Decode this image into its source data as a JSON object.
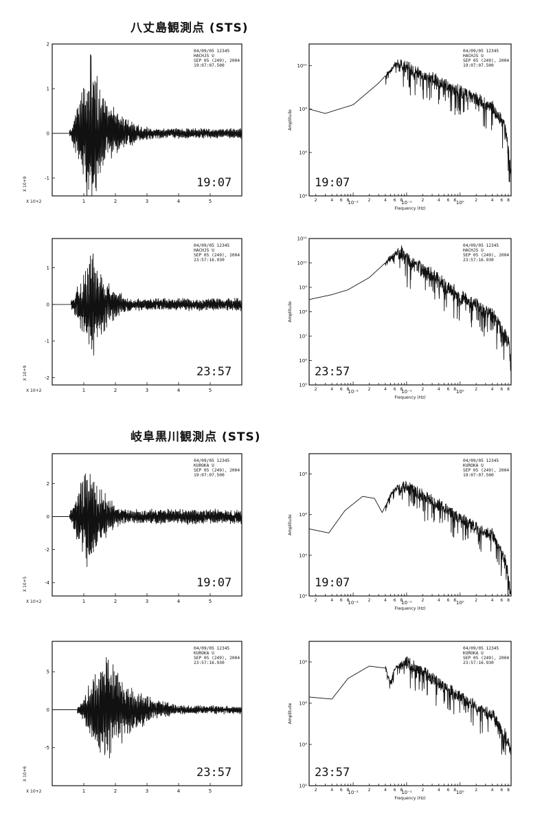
{
  "sections": [
    {
      "title": "八丈島観測点 (STS)"
    },
    {
      "title": "岐阜黒川観測点 (STS)"
    }
  ],
  "chart_data": [
    {
      "type": "line",
      "kind": "waveform",
      "station": "HACHJS",
      "info": [
        "04/09/05 12345",
        "HACHJS  U",
        "SEP 05 (249), 2004",
        "19:07:07.500"
      ],
      "time_label": "19:07",
      "xlim": [
        0,
        6
      ],
      "xticks": [
        "1",
        "2",
        "3",
        "4",
        "5"
      ],
      "x_scale_label": "X 10+2",
      "ylim": [
        -1.4,
        2.0
      ],
      "yticks": [
        {
          "v": 2,
          "t": "2"
        },
        {
          "v": 1,
          "t": "1"
        },
        {
          "v": 0,
          "t": "0"
        },
        {
          "v": -1,
          "t": "-1"
        }
      ],
      "y_scale_label": "X 10+9",
      "onset": 0.55,
      "peak_at": 1.2,
      "envelope_peak": 1.9,
      "decay": 1.4,
      "tail": 0.12,
      "seed": 11
    },
    {
      "type": "line",
      "kind": "spectrum",
      "info": [
        "04/09/05 12345",
        "HACHJS  U",
        "SEP 05 (249), 2004",
        "19:07:07.500"
      ],
      "time_label": "19:07",
      "xlabel": "Frequency (Hz)",
      "ylabel": "Amplitude",
      "xscale": "log",
      "yscale": "log",
      "xlim": [
        0.0015,
        9
      ],
      "ylim": [
        4,
        11
      ],
      "yticks": [
        {
          "v": 4,
          "t": "10⁴"
        },
        {
          "v": 6,
          "t": "10⁶"
        },
        {
          "v": 8,
          "t": "10⁸"
        },
        {
          "v": 10,
          "t": "10¹⁰"
        }
      ],
      "xtick_labels": [
        {
          "v": 0.01,
          "t": "10⁻²"
        },
        {
          "v": 0.1,
          "t": "10⁻¹"
        },
        {
          "v": 1,
          "t": "10⁰"
        }
      ],
      "anchors": [
        [
          0.0015,
          8.0
        ],
        [
          0.003,
          7.8
        ],
        [
          0.01,
          8.2
        ],
        [
          0.03,
          9.2
        ],
        [
          0.07,
          10.2
        ],
        [
          0.1,
          10.1
        ],
        [
          0.3,
          9.6
        ],
        [
          1,
          9.0
        ],
        [
          4,
          8.3
        ],
        [
          7,
          7.4
        ],
        [
          9,
          5.2
        ]
      ],
      "seed": 21
    },
    {
      "type": "line",
      "kind": "waveform",
      "station": "HACHJS",
      "info": [
        "04/09/05 12345",
        "HACHJS  U",
        "SEP 05 (249), 2004",
        "23:57:16.930"
      ],
      "time_label": "23:57",
      "xlim": [
        0,
        6
      ],
      "xticks": [
        "1",
        "2",
        "3",
        "4",
        "5"
      ],
      "x_scale_label": "X 10+2",
      "ylim": [
        -2.2,
        1.8
      ],
      "yticks": [
        {
          "v": 1,
          "t": "1"
        },
        {
          "v": 0,
          "t": "0"
        },
        {
          "v": -1,
          "t": "-1"
        },
        {
          "v": -2,
          "t": "-2"
        }
      ],
      "y_scale_label": "X 10+9",
      "onset": 0.6,
      "peak_at": 1.25,
      "envelope_peak": 1.7,
      "decay": 1.8,
      "tail": 0.18,
      "seed": 33
    },
    {
      "type": "line",
      "kind": "spectrum",
      "info": [
        "04/09/05 12345",
        "HACHJS  U",
        "SEP 05 (249), 2004",
        "23:57:16.930"
      ],
      "time_label": "23:57",
      "xlabel": "Frequency (Hz)",
      "ylabel": "Amplitude",
      "xscale": "log",
      "yscale": "log",
      "xlim": [
        0.0015,
        9
      ],
      "ylim": [
        5,
        11
      ],
      "yticks": [
        {
          "v": 5,
          "t": "10⁵"
        },
        {
          "v": 6,
          "t": "10⁶"
        },
        {
          "v": 7,
          "t": "10⁷"
        },
        {
          "v": 8,
          "t": "10⁸"
        },
        {
          "v": 9,
          "t": "10⁹"
        },
        {
          "v": 10,
          "t": "10¹⁰"
        },
        {
          "v": 11,
          "t": "10¹¹"
        }
      ],
      "xtick_labels": [
        {
          "v": 0.01,
          "t": "10⁻²"
        },
        {
          "v": 0.1,
          "t": "10⁻¹"
        },
        {
          "v": 1,
          "t": "10⁰"
        }
      ],
      "anchors": [
        [
          0.0015,
          8.5
        ],
        [
          0.004,
          8.7
        ],
        [
          0.008,
          8.9
        ],
        [
          0.02,
          9.4
        ],
        [
          0.05,
          10.2
        ],
        [
          0.08,
          10.6
        ],
        [
          0.12,
          10.2
        ],
        [
          0.3,
          9.7
        ],
        [
          1,
          8.8
        ],
        [
          4,
          8.1
        ],
        [
          8,
          7.0
        ],
        [
          9,
          5.9
        ]
      ],
      "seed": 44
    },
    {
      "type": "line",
      "kind": "waveform",
      "station": "KUROKA",
      "info": [
        "04/09/05 12345",
        "KUROKA  U",
        "SEP 05 (249), 2004",
        "19:07:07.500"
      ],
      "time_label": "19:07",
      "xlim": [
        0,
        6
      ],
      "xticks": [
        "1",
        "2",
        "3",
        "4",
        "5"
      ],
      "x_scale_label": "X 10+2",
      "ylim": [
        -4.8,
        3.8
      ],
      "yticks": [
        {
          "v": 2,
          "t": "2"
        },
        {
          "v": 0,
          "t": "0"
        },
        {
          "v": -2,
          "t": "-2"
        },
        {
          "v": -4,
          "t": "-4"
        }
      ],
      "y_scale_label": "X 10+5",
      "onset": 0.55,
      "peak_at": 1.1,
      "envelope_peak": 3.6,
      "decay": 1.6,
      "tail": 0.5,
      "seed": 55
    },
    {
      "type": "line",
      "kind": "spectrum",
      "info": [
        "04/09/05 12345",
        "KUROKA  U",
        "SEP 05 (249), 2004",
        "19:07:07.500"
      ],
      "time_label": "19:07",
      "xlabel": "Frequency (Hz)",
      "ylabel": "Amplitude",
      "xscale": "log",
      "yscale": "log",
      "xlim": [
        0.0015,
        9
      ],
      "ylim": [
        2,
        9
      ],
      "yticks": [
        {
          "v": 2,
          "t": "10²"
        },
        {
          "v": 4,
          "t": "10⁴"
        },
        {
          "v": 6,
          "t": "10⁶"
        },
        {
          "v": 8,
          "t": "10⁸"
        }
      ],
      "xtick_labels": [
        {
          "v": 0.01,
          "t": "10⁻²"
        },
        {
          "v": 0.1,
          "t": "10⁻¹"
        },
        {
          "v": 1,
          "t": "10⁰"
        }
      ],
      "anchors": [
        [
          0.0015,
          5.3
        ],
        [
          0.0035,
          5.1
        ],
        [
          0.007,
          6.2
        ],
        [
          0.015,
          6.9
        ],
        [
          0.025,
          6.8
        ],
        [
          0.035,
          6.1
        ],
        [
          0.05,
          7.0
        ],
        [
          0.09,
          7.6
        ],
        [
          0.3,
          6.9
        ],
        [
          1,
          6.0
        ],
        [
          4,
          5.2
        ],
        [
          7,
          4.0
        ],
        [
          9,
          2.2
        ]
      ],
      "seed": 66
    },
    {
      "type": "line",
      "kind": "waveform",
      "station": "KUROKA",
      "info": [
        "04/09/05 12345",
        "KUROKA  U",
        "SEP 05 (249), 2004",
        "23:57:16.930"
      ],
      "time_label": "23:57",
      "xlim": [
        0,
        6
      ],
      "xticks": [
        "1",
        "2",
        "3",
        "4",
        "5"
      ],
      "x_scale_label": "X 10+2",
      "ylim": [
        -10,
        9
      ],
      "yticks": [
        {
          "v": 5,
          "t": "5"
        },
        {
          "v": 0,
          "t": "0"
        },
        {
          "v": -5,
          "t": "-5"
        }
      ],
      "y_scale_label": "X 10+6",
      "onset": 0.8,
      "peak_at": 1.7,
      "envelope_peak": 8.5,
      "decay": 1.1,
      "tail": 0.6,
      "seed": 77
    },
    {
      "type": "line",
      "kind": "spectrum",
      "info": [
        "04/09/05 12345",
        "KUROKA  U",
        "SEP 05 (249), 2004",
        "23:57:16.930"
      ],
      "time_label": "23:57",
      "xlabel": "Frequency (Hz)",
      "ylabel": "Amplitude",
      "xscale": "log",
      "yscale": "log",
      "xlim": [
        0.0015,
        9
      ],
      "ylim": [
        2,
        9
      ],
      "yticks": [
        {
          "v": 2,
          "t": "10²"
        },
        {
          "v": 4,
          "t": "10⁴"
        },
        {
          "v": 6,
          "t": "10⁶"
        },
        {
          "v": 8,
          "t": "10⁸"
        }
      ],
      "xtick_labels": [
        {
          "v": 0.01,
          "t": "10⁻²"
        },
        {
          "v": 0.1,
          "t": "10⁻¹"
        },
        {
          "v": 1,
          "t": "10⁰"
        }
      ],
      "anchors": [
        [
          0.0015,
          6.3
        ],
        [
          0.004,
          6.2
        ],
        [
          0.008,
          7.2
        ],
        [
          0.02,
          7.8
        ],
        [
          0.04,
          7.7
        ],
        [
          0.05,
          7.0
        ],
        [
          0.06,
          7.7
        ],
        [
          0.1,
          8.2
        ],
        [
          0.3,
          7.4
        ],
        [
          1,
          6.5
        ],
        [
          4,
          5.6
        ],
        [
          7,
          4.6
        ],
        [
          9,
          3.9
        ]
      ],
      "seed": 88
    }
  ]
}
